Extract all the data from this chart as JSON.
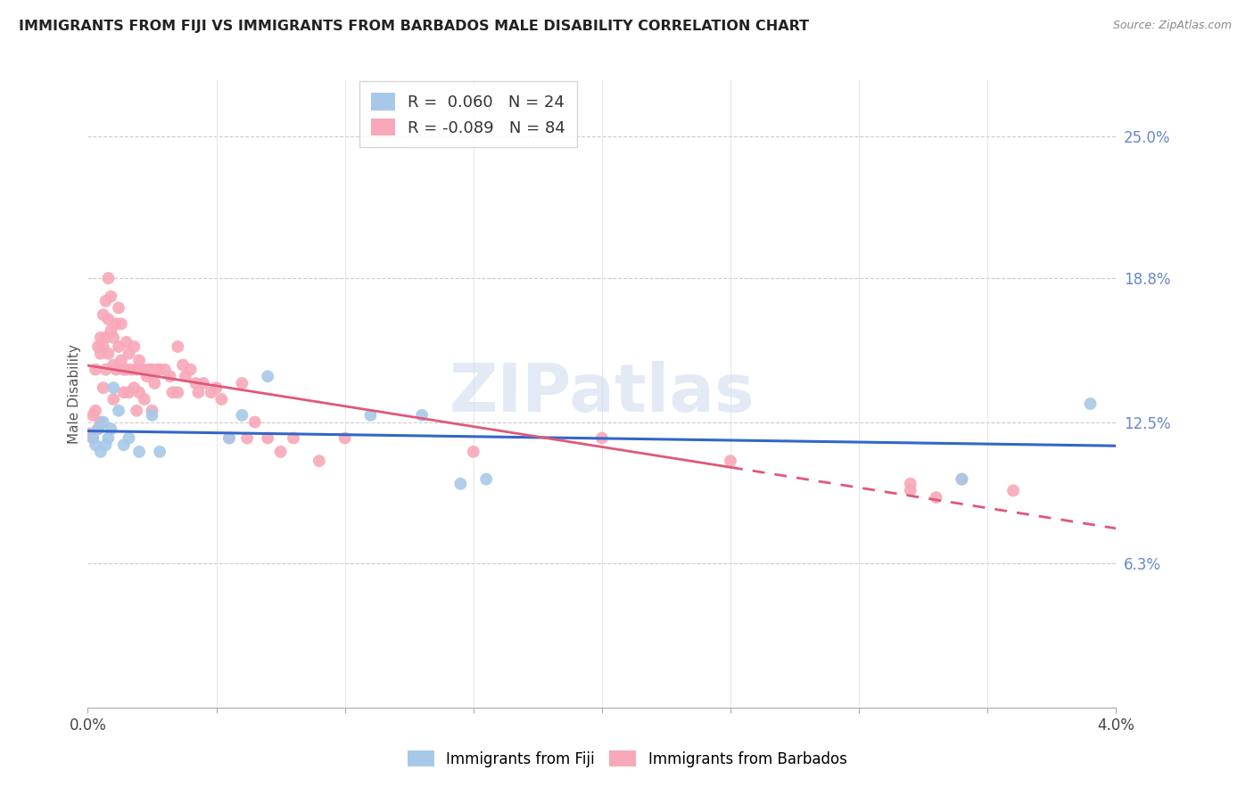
{
  "title": "IMMIGRANTS FROM FIJI VS IMMIGRANTS FROM BARBADOS MALE DISABILITY CORRELATION CHART",
  "source": "Source: ZipAtlas.com",
  "ylabel": "Male Disability",
  "ytick_labels": [
    "6.3%",
    "12.5%",
    "18.8%",
    "25.0%"
  ],
  "ytick_values": [
    0.063,
    0.125,
    0.188,
    0.25
  ],
  "xmin": 0.0,
  "xmax": 0.04,
  "ymin": 0.0,
  "ymax": 0.275,
  "fiji_R": 0.06,
  "fiji_N": 24,
  "barbados_R": -0.089,
  "barbados_N": 84,
  "fiji_color": "#a8c8e8",
  "fiji_line_color": "#3366cc",
  "barbados_color": "#f8a8b8",
  "barbados_line_color": "#e05878",
  "watermark": "ZIPatlas",
  "fiji_x": [
    0.0002,
    0.0003,
    0.0004,
    0.0005,
    0.0006,
    0.0007,
    0.0008,
    0.0009,
    0.001,
    0.0012,
    0.0014,
    0.0016,
    0.002,
    0.0025,
    0.0028,
    0.0055,
    0.006,
    0.007,
    0.011,
    0.013,
    0.0145,
    0.0155,
    0.034,
    0.039
  ],
  "fiji_y": [
    0.118,
    0.115,
    0.122,
    0.112,
    0.125,
    0.115,
    0.118,
    0.122,
    0.14,
    0.13,
    0.115,
    0.118,
    0.112,
    0.128,
    0.112,
    0.118,
    0.128,
    0.145,
    0.128,
    0.128,
    0.098,
    0.1,
    0.1,
    0.133
  ],
  "barbados_x": [
    0.0001,
    0.0002,
    0.0002,
    0.0003,
    0.0003,
    0.0004,
    0.0004,
    0.0005,
    0.0005,
    0.0005,
    0.0006,
    0.0006,
    0.0006,
    0.0007,
    0.0007,
    0.0007,
    0.0008,
    0.0008,
    0.0008,
    0.0009,
    0.0009,
    0.001,
    0.001,
    0.001,
    0.0011,
    0.0011,
    0.0012,
    0.0012,
    0.0013,
    0.0013,
    0.0014,
    0.0014,
    0.0015,
    0.0015,
    0.0016,
    0.0016,
    0.0017,
    0.0018,
    0.0018,
    0.0019,
    0.0019,
    0.002,
    0.002,
    0.0021,
    0.0022,
    0.0022,
    0.0023,
    0.0024,
    0.0025,
    0.0025,
    0.0026,
    0.0027,
    0.0028,
    0.003,
    0.0032,
    0.0033,
    0.0035,
    0.0035,
    0.0037,
    0.0038,
    0.004,
    0.0042,
    0.0043,
    0.0045,
    0.0048,
    0.005,
    0.0052,
    0.0055,
    0.006,
    0.0062,
    0.0065,
    0.007,
    0.0075,
    0.008,
    0.009,
    0.01,
    0.015,
    0.02,
    0.025,
    0.032,
    0.032,
    0.033,
    0.034,
    0.036
  ],
  "barbados_y": [
    0.12,
    0.128,
    0.118,
    0.148,
    0.13,
    0.158,
    0.122,
    0.162,
    0.155,
    0.125,
    0.172,
    0.158,
    0.14,
    0.178,
    0.162,
    0.148,
    0.188,
    0.17,
    0.155,
    0.18,
    0.165,
    0.162,
    0.15,
    0.135,
    0.168,
    0.148,
    0.175,
    0.158,
    0.168,
    0.152,
    0.148,
    0.138,
    0.16,
    0.148,
    0.155,
    0.138,
    0.148,
    0.158,
    0.14,
    0.148,
    0.13,
    0.152,
    0.138,
    0.148,
    0.148,
    0.135,
    0.145,
    0.148,
    0.148,
    0.13,
    0.142,
    0.148,
    0.148,
    0.148,
    0.145,
    0.138,
    0.158,
    0.138,
    0.15,
    0.145,
    0.148,
    0.142,
    0.138,
    0.142,
    0.138,
    0.14,
    0.135,
    0.118,
    0.142,
    0.118,
    0.125,
    0.118,
    0.112,
    0.118,
    0.108,
    0.118,
    0.112,
    0.118,
    0.108,
    0.098,
    0.095,
    0.092,
    0.1,
    0.095
  ]
}
